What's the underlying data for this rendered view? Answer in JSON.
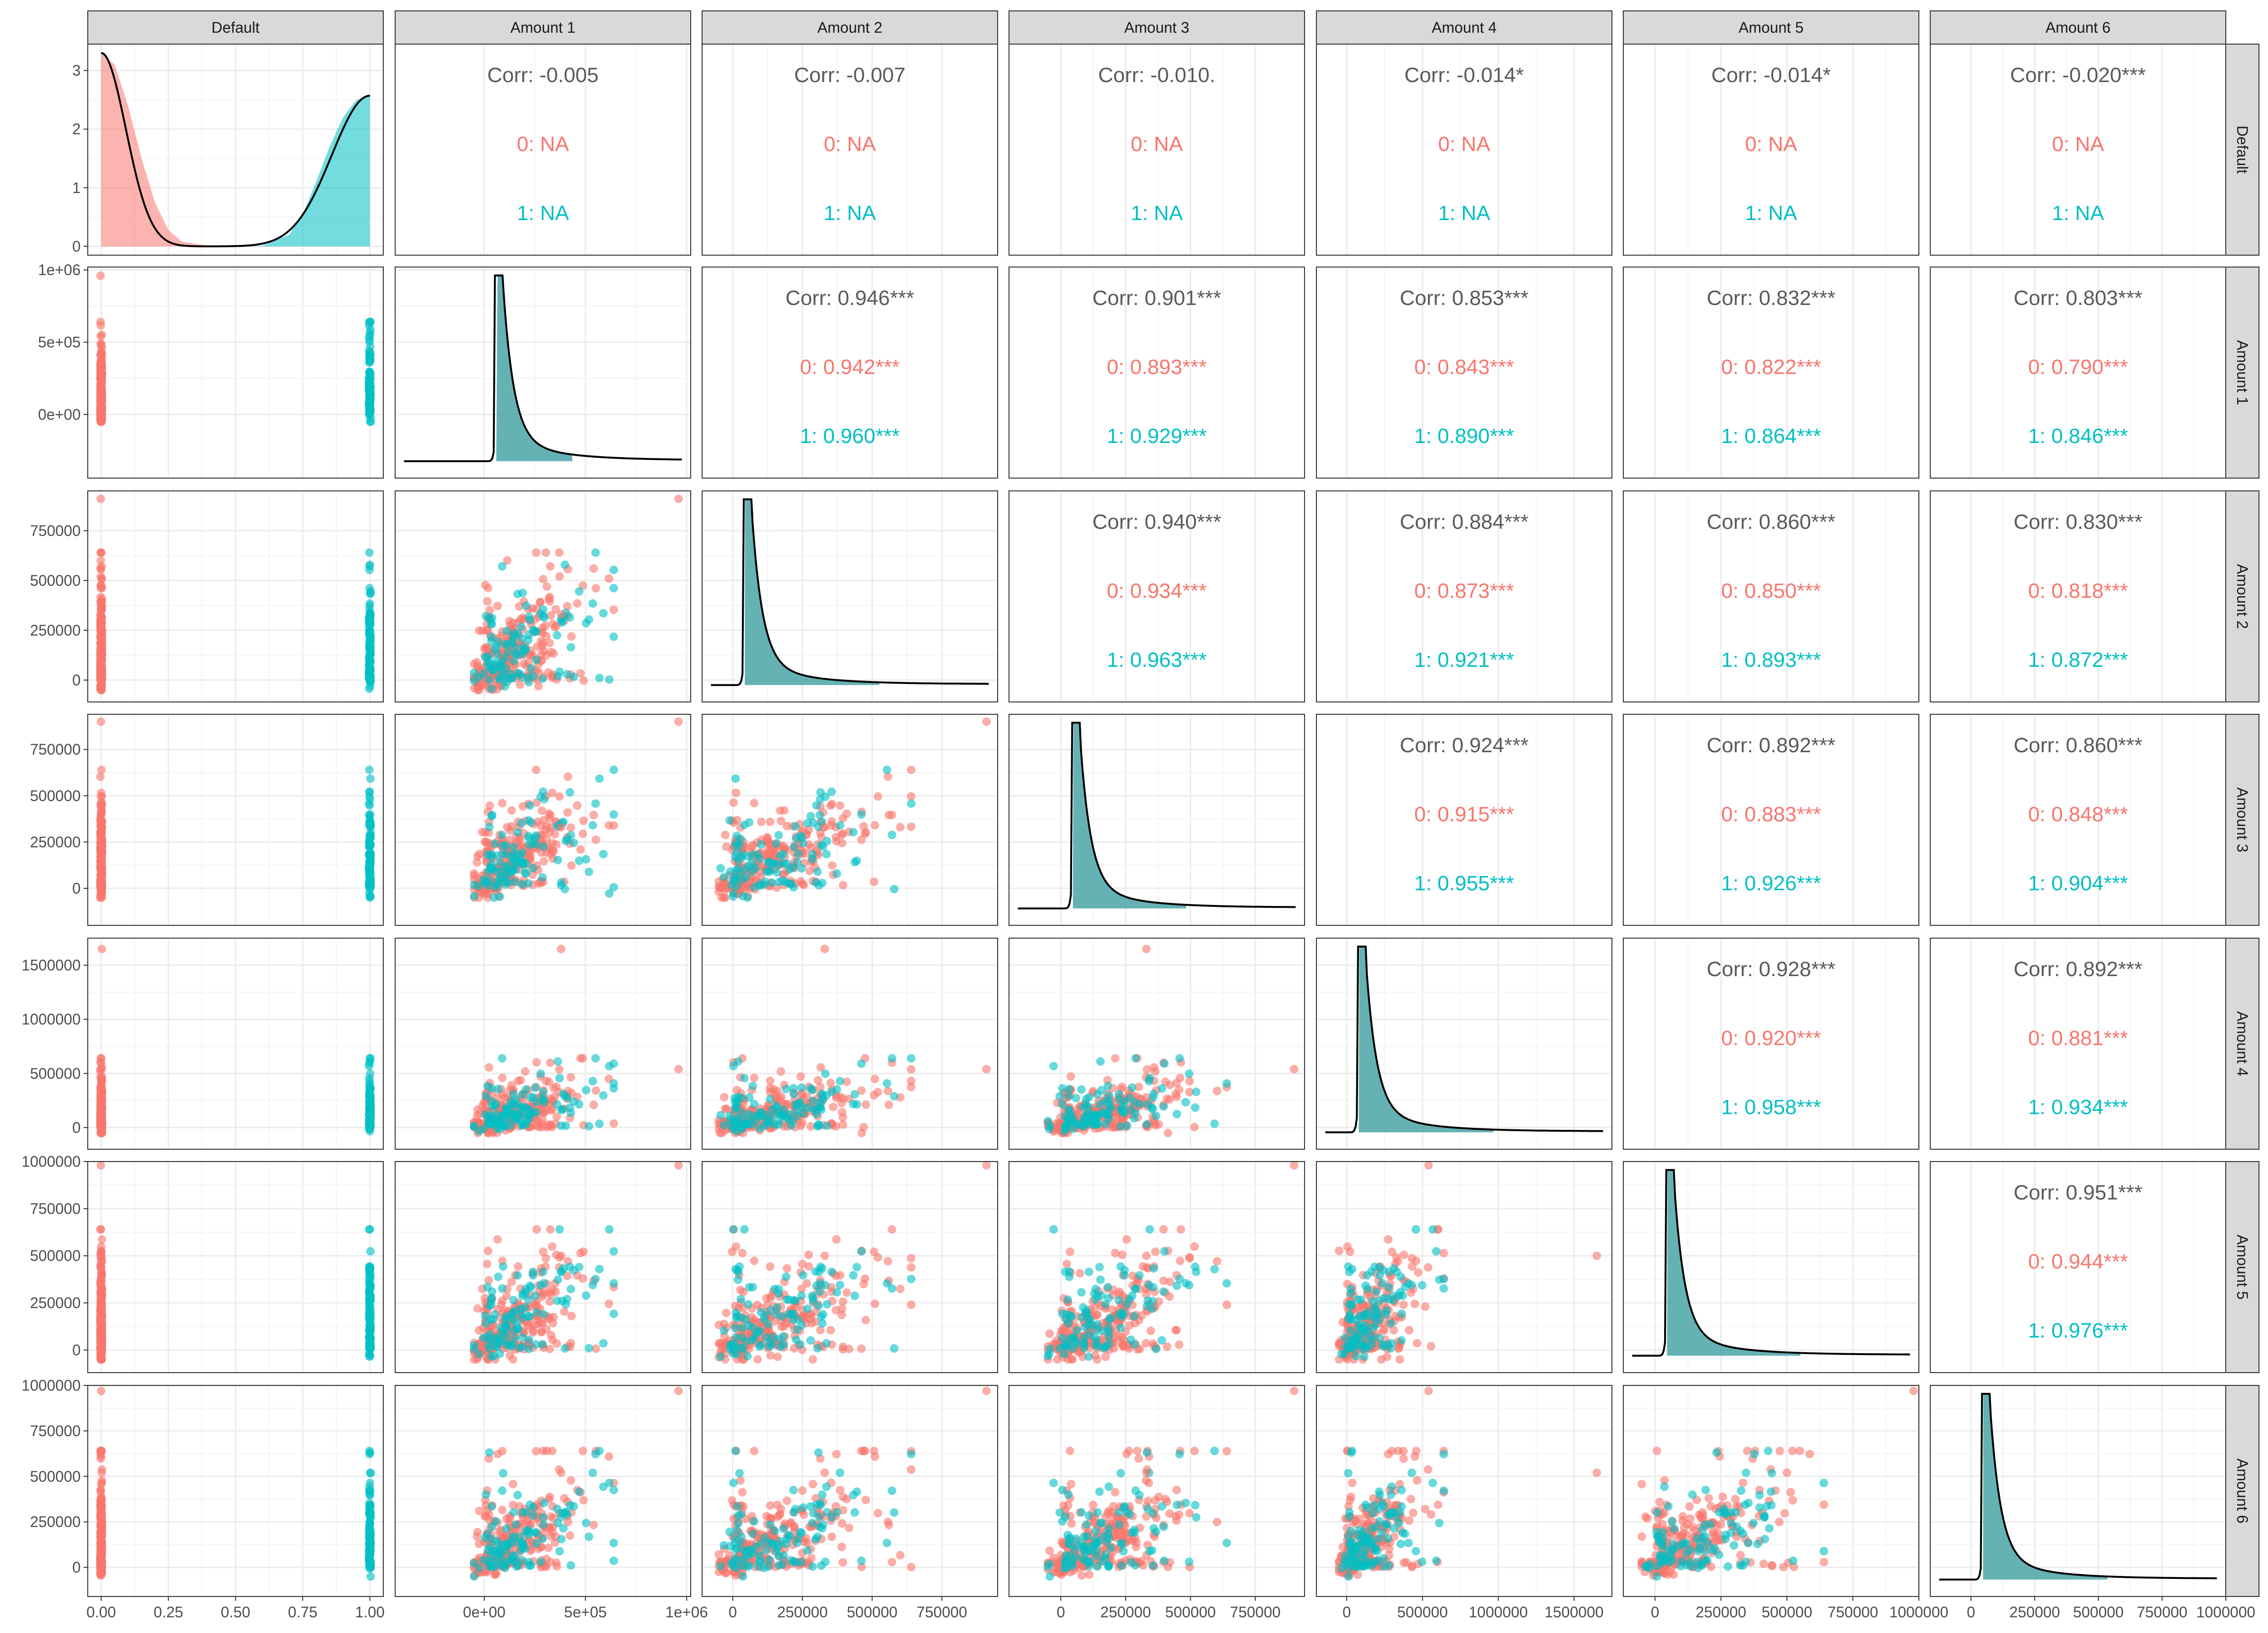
{
  "colors": {
    "group0": "#F8766D",
    "group1": "#00BFC4",
    "overall": "#5a5a5a",
    "density_line": "#000000",
    "density_fill": "#4aa5a8",
    "strip_bg": "#d9d9d9"
  },
  "chart_data": {
    "type": "scatter",
    "variables": [
      "Default",
      "Amount 1",
      "Amount 2",
      "Amount 3",
      "Amount 4",
      "Amount 5",
      "Amount 6"
    ],
    "groups": [
      "0",
      "1"
    ],
    "default_density": {
      "x": [
        0.0,
        0.05,
        0.1,
        0.15,
        0.2,
        0.25,
        0.3,
        0.4,
        0.5,
        0.6,
        0.7,
        0.75,
        0.8,
        0.85,
        0.9,
        0.95,
        1.0
      ],
      "group0": [
        3.3,
        3.1,
        2.4,
        1.5,
        0.75,
        0.28,
        0.08,
        0.01,
        0.0,
        0.0,
        0.0,
        0.0,
        0.0,
        0.0,
        0.0,
        0.0,
        0.0
      ],
      "group1": [
        0.0,
        0.0,
        0.0,
        0.0,
        0.0,
        0.0,
        0.0,
        0.0,
        0.0,
        0.01,
        0.2,
        0.55,
        1.1,
        1.7,
        2.2,
        2.5,
        2.57
      ]
    },
    "correlations": [
      {
        "row": "Default",
        "col": "Amount 1",
        "overall": "Corr: -0.005",
        "g0": "0:   NA",
        "g1": "1:   NA"
      },
      {
        "row": "Default",
        "col": "Amount 2",
        "overall": "Corr: -0.007",
        "g0": "0:   NA",
        "g1": "1:   NA"
      },
      {
        "row": "Default",
        "col": "Amount 3",
        "overall": "Corr: -0.010.",
        "g0": "0:   NA",
        "g1": "1:   NA"
      },
      {
        "row": "Default",
        "col": "Amount 4",
        "overall": "Corr: -0.014*",
        "g0": "0:   NA",
        "g1": "1:   NA"
      },
      {
        "row": "Default",
        "col": "Amount 5",
        "overall": "Corr: -0.014*",
        "g0": "0:   NA",
        "g1": "1:   NA"
      },
      {
        "row": "Default",
        "col": "Amount 6",
        "overall": "Corr: -0.020***",
        "g0": "0:   NA",
        "g1": "1:   NA"
      },
      {
        "row": "Amount 1",
        "col": "Amount 2",
        "overall": "Corr: 0.946***",
        "g0": "0: 0.942***",
        "g1": "1: 0.960***"
      },
      {
        "row": "Amount 1",
        "col": "Amount 3",
        "overall": "Corr: 0.901***",
        "g0": "0: 0.893***",
        "g1": "1: 0.929***"
      },
      {
        "row": "Amount 1",
        "col": "Amount 4",
        "overall": "Corr: 0.853***",
        "g0": "0: 0.843***",
        "g1": "1: 0.890***"
      },
      {
        "row": "Amount 1",
        "col": "Amount 5",
        "overall": "Corr: 0.832***",
        "g0": "0: 0.822***",
        "g1": "1: 0.864***"
      },
      {
        "row": "Amount 1",
        "col": "Amount 6",
        "overall": "Corr: 0.803***",
        "g0": "0: 0.790***",
        "g1": "1: 0.846***"
      },
      {
        "row": "Amount 2",
        "col": "Amount 3",
        "overall": "Corr: 0.940***",
        "g0": "0: 0.934***",
        "g1": "1: 0.963***"
      },
      {
        "row": "Amount 2",
        "col": "Amount 4",
        "overall": "Corr: 0.884***",
        "g0": "0: 0.873***",
        "g1": "1: 0.921***"
      },
      {
        "row": "Amount 2",
        "col": "Amount 5",
        "overall": "Corr: 0.860***",
        "g0": "0: 0.850***",
        "g1": "1: 0.893***"
      },
      {
        "row": "Amount 2",
        "col": "Amount 6",
        "overall": "Corr: 0.830***",
        "g0": "0: 0.818***",
        "g1": "1: 0.872***"
      },
      {
        "row": "Amount 3",
        "col": "Amount 4",
        "overall": "Corr: 0.924***",
        "g0": "0: 0.915***",
        "g1": "1: 0.955***"
      },
      {
        "row": "Amount 3",
        "col": "Amount 5",
        "overall": "Corr: 0.892***",
        "g0": "0: 0.883***",
        "g1": "1: 0.926***"
      },
      {
        "row": "Amount 3",
        "col": "Amount 6",
        "overall": "Corr: 0.860***",
        "g0": "0: 0.848***",
        "g1": "1: 0.904***"
      },
      {
        "row": "Amount 4",
        "col": "Amount 5",
        "overall": "Corr: 0.928***",
        "g0": "0: 0.920***",
        "g1": "1: 0.958***"
      },
      {
        "row": "Amount 4",
        "col": "Amount 6",
        "overall": "Corr: 0.892***",
        "g0": "0: 0.881***",
        "g1": "1: 0.934***"
      },
      {
        "row": "Amount 5",
        "col": "Amount 6",
        "overall": "Corr: 0.951***",
        "g0": "0: 0.944***",
        "g1": "1: 0.976***"
      }
    ],
    "axes": {
      "Default": {
        "lim": [
          -0.05,
          1.05
        ],
        "ticks": [
          0,
          0.25,
          0.5,
          0.75,
          1
        ],
        "x_tick_labels": [
          "0.00",
          "0.25",
          "0.50",
          "0.75",
          "1.00"
        ],
        "y_lim": [
          -0.15,
          3.45
        ],
        "y_ticks": [
          0,
          1,
          2,
          3
        ],
        "y_tick_labels": [
          "0",
          "1",
          "2",
          "3"
        ]
      },
      "Amount 1": {
        "lim": [
          -440000,
          1020000
        ],
        "ticks": [
          0,
          500000,
          1000000
        ],
        "tick_labels": [
          "0e+00",
          "5e+05",
          "1e+06"
        ]
      },
      "Amount 2": {
        "lim": [
          -110000,
          950000
        ],
        "ticks": [
          0,
          250000,
          500000,
          750000
        ],
        "tick_labels": [
          "0",
          "250000",
          "500000",
          "750000"
        ]
      },
      "Amount 3": {
        "lim": [
          -200000,
          940000
        ],
        "ticks": [
          0,
          250000,
          500000,
          750000
        ],
        "tick_labels": [
          "0",
          "250000",
          "500000",
          "750000"
        ]
      },
      "Amount 4": {
        "lim": [
          -200000,
          1750000
        ],
        "ticks": [
          0,
          500000,
          1000000,
          1500000
        ],
        "tick_labels": [
          "0",
          "500000",
          "1000000",
          "1500000"
        ]
      },
      "Amount 5": {
        "lim": [
          -120000,
          1000000
        ],
        "ticks": [
          0,
          250000,
          500000,
          750000,
          1000000
        ],
        "tick_labels": [
          "0",
          "250000",
          "500000",
          "750000",
          "1000000"
        ]
      },
      "Amount 6": {
        "lim": [
          -160000,
          1000000
        ],
        "ticks": [
          0,
          250000,
          500000,
          750000,
          1000000
        ],
        "tick_labels": [
          "0",
          "250000",
          "500000",
          "750000",
          "1000000"
        ]
      }
    },
    "density_shape": {
      "peak_fraction": 0.06,
      "tail": "long right tail"
    },
    "scatter_shape": {
      "points_per_group_approx": [
        260,
        110
      ],
      "core_max": 600000,
      "outlier_max": 960000
    },
    "grid": true,
    "legend": "none"
  }
}
